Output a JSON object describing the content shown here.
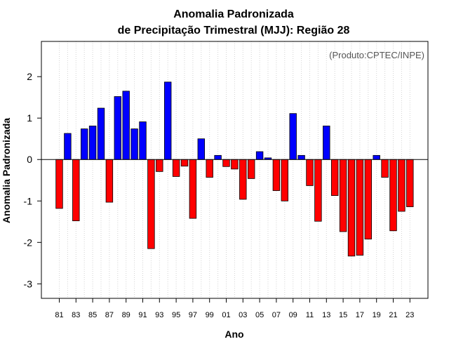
{
  "chart_data": {
    "type": "bar",
    "title": "Anomalia Padronizada",
    "subtitle": "de Precipitação Trimestral (MJJ): Região 28",
    "annotation": "(Produto:CPTEC/INPE)",
    "xlabel": "Ano",
    "ylabel": "Anomalia Padronizada",
    "ylim": [
      -3.35,
      2.85
    ],
    "yticks": [
      -3,
      -2,
      -1,
      0,
      1,
      2
    ],
    "xtick_labels": [
      "81",
      "83",
      "85",
      "87",
      "89",
      "91",
      "93",
      "95",
      "97",
      "99",
      "01",
      "03",
      "05",
      "07",
      "09",
      "11",
      "13",
      "15",
      "17",
      "19",
      "21",
      "23"
    ],
    "categories": [
      "81",
      "82",
      "83",
      "84",
      "85",
      "86",
      "87",
      "88",
      "89",
      "90",
      "91",
      "92",
      "93",
      "94",
      "95",
      "96",
      "97",
      "98",
      "99",
      "00",
      "01",
      "02",
      "03",
      "04",
      "05",
      "06",
      "07",
      "08",
      "09",
      "10",
      "11",
      "12",
      "13",
      "14",
      "15",
      "16",
      "17",
      "18",
      "19",
      "20",
      "21",
      "22",
      "23"
    ],
    "values": [
      -1.18,
      0.63,
      -1.48,
      0.74,
      0.81,
      1.24,
      -1.03,
      1.52,
      1.65,
      0.74,
      0.91,
      -2.15,
      -0.29,
      1.87,
      -0.41,
      -0.16,
      -1.42,
      0.5,
      -0.43,
      0.1,
      -0.17,
      -0.23,
      -0.96,
      -0.46,
      0.19,
      0.04,
      -0.75,
      -1.0,
      1.11,
      0.1,
      -0.63,
      -1.49,
      0.81,
      -0.87,
      -1.74,
      -2.33,
      -2.31,
      -1.92,
      0.1,
      -0.43,
      -1.72,
      -1.25,
      -1.14
    ],
    "colors": {
      "positive": "#0000ff",
      "negative": "#ff0000",
      "zero_line": "#000000",
      "grid": "#d3d3d3"
    }
  }
}
